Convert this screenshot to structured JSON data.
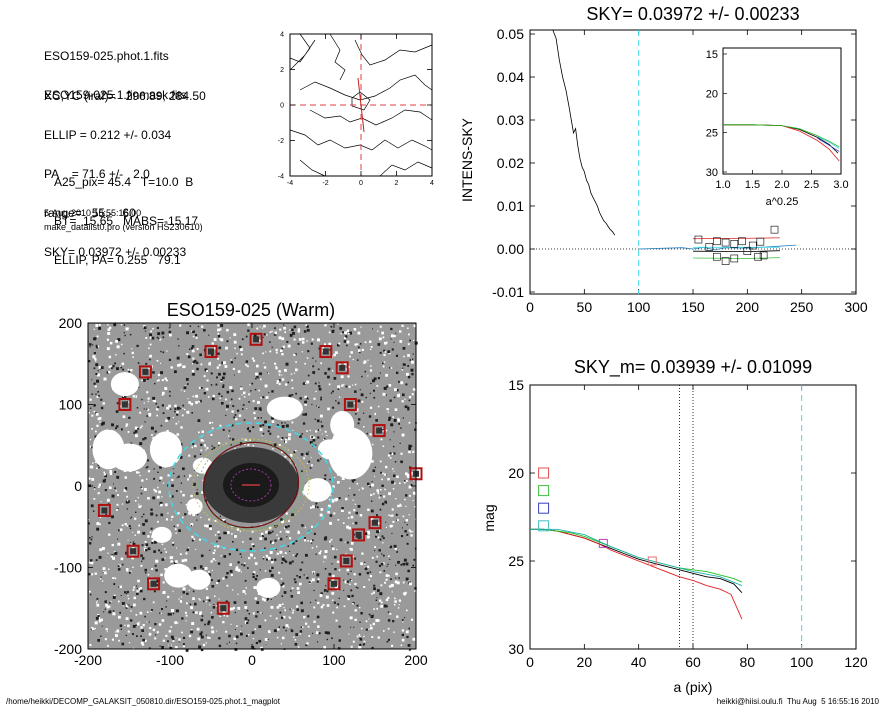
{
  "info": {
    "lines_a": [
      "ESO159-025.phot.1.fits",
      "ESO159-025.1.finmask.fits"
    ],
    "lines_b": [
      "XC,YC (iraf)=   296.89, 284.50",
      "ELLIP = 0.212 +/- 0.034",
      "PA    = 71.6 +/-   2.0",
      "range=   55.-   60.",
      "SKY= 0.03972 +/- 0.00233"
    ],
    "lines_c": [
      "A25_pix= 45.4   T=10.0  B",
      "BT=  15.65   MABS=-15.17",
      "ELLIP, PA= 0.255   79.1"
    ],
    "timestamp": "5-Aug-2010 16:55:16.00",
    "program": "make_datalist0.pro (version HS230610)"
  },
  "footer": {
    "path": "/home/heikki/DECOMP_GALAKSIT_050810.dir/ESO159-025.phot.1_magplot",
    "user_date": "heikki@hiisi.oulu.fi  Thu Aug  5 16:55:16 2010"
  },
  "chart_data": [
    {
      "id": "contour",
      "type": "contour",
      "xlim": [
        -4,
        4
      ],
      "ylim": [
        -4,
        4
      ],
      "xticks": [
        "-4",
        "-2",
        "0",
        "2",
        "4"
      ],
      "yticks": [
        "4",
        "2",
        "0",
        "-2",
        "-4"
      ]
    },
    {
      "id": "sky",
      "type": "line",
      "title": "SKY= 0.03972 +/- 0.00233",
      "xlabel": "",
      "ylabel": "INTENS-SKY",
      "xlim": [
        0,
        300
      ],
      "ylim": [
        -0.012,
        0.051
      ],
      "xticks": [
        "0",
        "50",
        "100",
        "150",
        "200",
        "250",
        "300"
      ],
      "yticks": [
        "0.05",
        "0.04",
        "0.03",
        "0.02",
        "0.01",
        "0.00",
        "-0.01"
      ],
      "vline": 100,
      "profile": [
        [
          21,
          0.051
        ],
        [
          24,
          0.049
        ],
        [
          27,
          0.044
        ],
        [
          30,
          0.04
        ],
        [
          33,
          0.037
        ],
        [
          36,
          0.033
        ],
        [
          38,
          0.03
        ],
        [
          40,
          0.027
        ],
        [
          42,
          0.028
        ],
        [
          44,
          0.024
        ],
        [
          46,
          0.021
        ],
        [
          48,
          0.019
        ],
        [
          50,
          0.018
        ],
        [
          52,
          0.016
        ],
        [
          54,
          0.015
        ],
        [
          56,
          0.013
        ],
        [
          58,
          0.012
        ],
        [
          60,
          0.011
        ],
        [
          62,
          0.01
        ],
        [
          64,
          0.0085
        ],
        [
          66,
          0.0075
        ],
        [
          68,
          0.0065
        ],
        [
          70,
          0.006
        ],
        [
          72,
          0.0052
        ],
        [
          74,
          0.0045
        ],
        [
          76,
          0.004
        ],
        [
          78,
          0.0032
        ]
      ],
      "squares": [
        [
          155,
          0.0022
        ],
        [
          165,
          0.0005
        ],
        [
          172,
          0.0018
        ],
        [
          180,
          0.0015
        ],
        [
          188,
          0.0012
        ],
        [
          195,
          0.0018
        ],
        [
          205,
          0.0008
        ],
        [
          212,
          0.0017
        ],
        [
          225,
          0.0045
        ],
        [
          172,
          -0.0018
        ],
        [
          180,
          -0.0028
        ],
        [
          188,
          -0.0022
        ],
        [
          200,
          -0.0005
        ],
        [
          210,
          -0.0018
        ],
        [
          215,
          -0.0015
        ]
      ]
    },
    {
      "id": "sky_inset",
      "type": "line",
      "xlabel": "a^0.25",
      "ylabel": "",
      "xlim": [
        1.0,
        3.0
      ],
      "ylim": [
        15,
        30
      ],
      "xticks": [
        "1.0",
        "1.5",
        "2.0",
        "2.5",
        "3.0"
      ],
      "yticks": [
        "15",
        "20",
        "25",
        "30"
      ]
    },
    {
      "id": "image",
      "type": "image",
      "title": "ESO159-025 (Warm)",
      "xlim": [
        -200,
        200
      ],
      "ylim": [
        -200,
        200
      ],
      "xticks": [
        "-200",
        "-100",
        "0",
        "100",
        "200"
      ],
      "yticks": [
        "200",
        "100",
        "0",
        "-100",
        "-200"
      ],
      "stars": [
        [
          -50,
          165
        ],
        [
          5,
          180
        ],
        [
          -130,
          140
        ],
        [
          -155,
          100
        ],
        [
          90,
          165
        ],
        [
          110,
          145
        ],
        [
          120,
          100
        ],
        [
          155,
          68
        ],
        [
          200,
          15
        ],
        [
          -180,
          -30
        ],
        [
          150,
          -45
        ],
        [
          130,
          -60
        ],
        [
          -145,
          -80
        ],
        [
          115,
          -92
        ],
        [
          -120,
          -120
        ],
        [
          100,
          -120
        ],
        [
          -35,
          -150
        ]
      ]
    },
    {
      "id": "mag",
      "type": "line",
      "title": "SKY_m=  0.03939 +/- 0.01099",
      "xlabel": "a (pix)",
      "ylabel": "mag",
      "xlim": [
        0,
        120
      ],
      "ylim": [
        15,
        30
      ],
      "xticks": [
        "0",
        "20",
        "40",
        "60",
        "80",
        "100",
        "120"
      ],
      "yticks": [
        "15",
        "20",
        "25",
        "30"
      ],
      "vlines_dotted": [
        55,
        60
      ],
      "vline_dashed": 100,
      "legend_markers": [
        {
          "mag": 20.0,
          "color": "#e05050"
        },
        {
          "mag": 21.0,
          "color": "#40c040"
        },
        {
          "mag": 22.0,
          "color": "#4040c0"
        },
        {
          "mag": 23.0,
          "color": "#40c0c0"
        }
      ],
      "series": [
        {
          "color": "#000000",
          "points": [
            [
              0,
              23.2
            ],
            [
              5,
              23.2
            ],
            [
              10,
              23.3
            ],
            [
              15,
              23.5
            ],
            [
              20,
              23.7
            ],
            [
              25,
              24.0
            ],
            [
              30,
              24.3
            ],
            [
              35,
              24.6
            ],
            [
              40,
              24.9
            ],
            [
              45,
              25.1
            ],
            [
              50,
              25.3
            ],
            [
              55,
              25.5
            ],
            [
              60,
              25.7
            ],
            [
              65,
              25.9
            ],
            [
              70,
              26.0
            ],
            [
              75,
              26.3
            ],
            [
              78,
              26.8
            ]
          ]
        },
        {
          "color": "#e02020",
          "points": [
            [
              0,
              23.2
            ],
            [
              5,
              23.2
            ],
            [
              10,
              23.3
            ],
            [
              15,
              23.5
            ],
            [
              20,
              23.7
            ],
            [
              25,
              24.0
            ],
            [
              30,
              24.4
            ],
            [
              35,
              24.7
            ],
            [
              40,
              25.0
            ],
            [
              45,
              25.3
            ],
            [
              50,
              25.6
            ],
            [
              55,
              25.9
            ],
            [
              60,
              26.1
            ],
            [
              65,
              26.4
            ],
            [
              70,
              26.6
            ],
            [
              74,
              26.9
            ],
            [
              78,
              28.3
            ]
          ]
        },
        {
          "color": "#20c020",
          "points": [
            [
              0,
              23.2
            ],
            [
              5,
              23.2
            ],
            [
              10,
              23.3
            ],
            [
              15,
              23.4
            ],
            [
              20,
              23.6
            ],
            [
              25,
              23.9
            ],
            [
              30,
              24.2
            ],
            [
              35,
              24.5
            ],
            [
              40,
              24.8
            ],
            [
              45,
              25.0
            ],
            [
              50,
              25.2
            ],
            [
              55,
              25.4
            ],
            [
              60,
              25.5
            ],
            [
              65,
              25.6
            ],
            [
              70,
              25.8
            ],
            [
              75,
              26.0
            ],
            [
              78,
              26.2
            ]
          ]
        },
        {
          "color": "#20b0b0",
          "points": [
            [
              0,
              23.2
            ],
            [
              10,
              23.2
            ],
            [
              20,
              23.5
            ],
            [
              30,
              24.2
            ],
            [
              40,
              24.8
            ],
            [
              50,
              25.2
            ],
            [
              60,
              25.6
            ],
            [
              70,
              25.9
            ],
            [
              78,
              26.4
            ]
          ]
        }
      ],
      "squares": [
        {
          "a": 27,
          "mag": 24.0,
          "color": "#c040c0"
        },
        {
          "a": 45,
          "mag": 25.0,
          "color": "#e07070"
        }
      ]
    }
  ]
}
